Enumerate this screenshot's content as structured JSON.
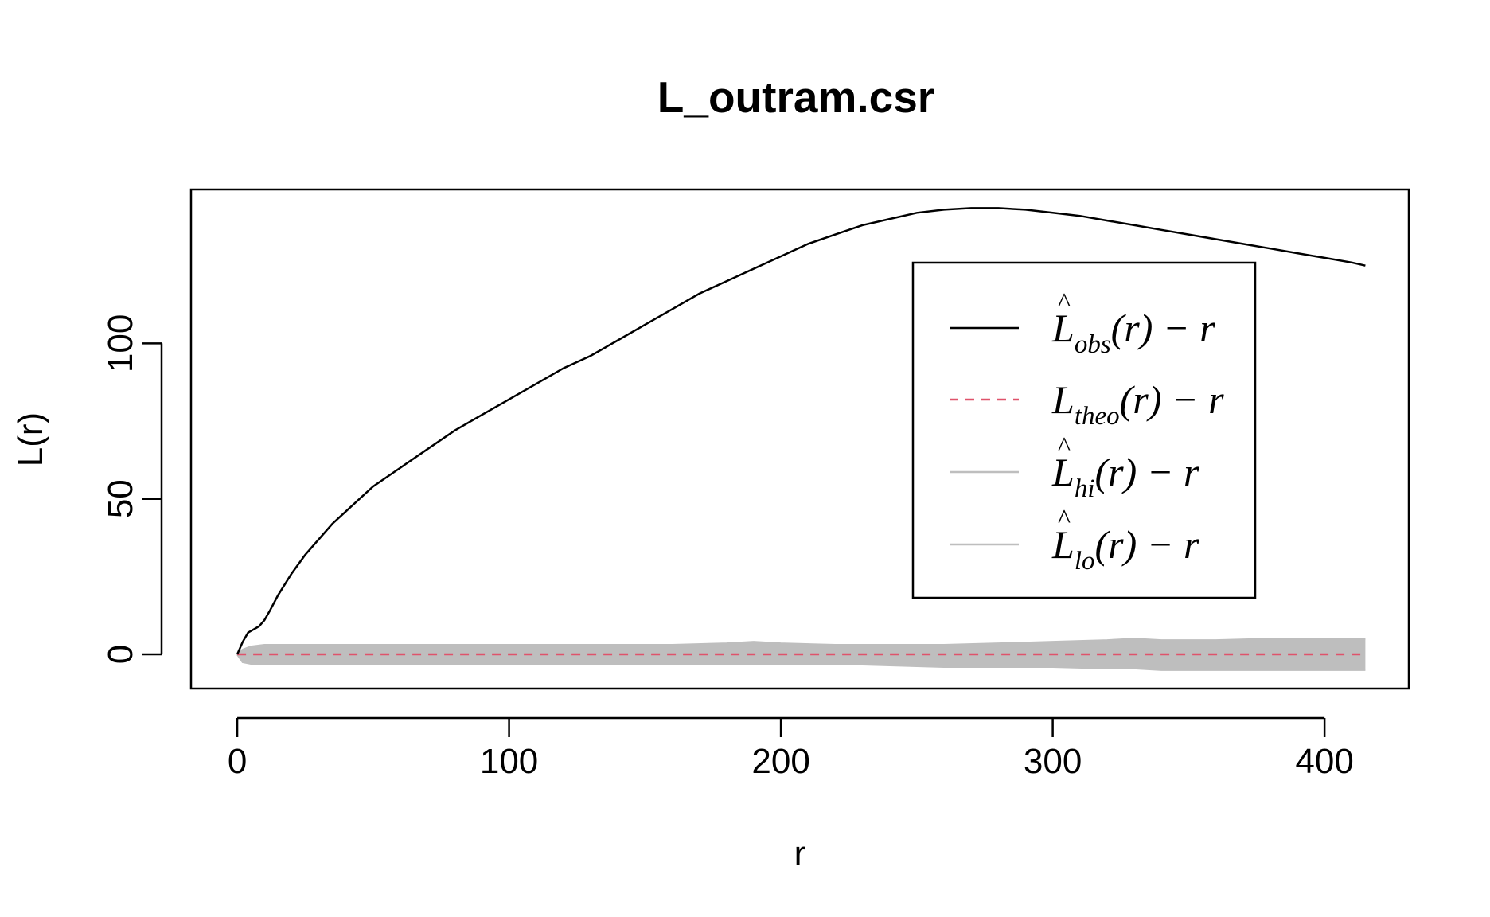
{
  "chart_data": {
    "type": "line",
    "title": "L_outram.csr",
    "xlabel": "r",
    "ylabel": "L(r)",
    "xlim": [
      -17,
      431
    ],
    "ylim": [
      -11,
      149.5
    ],
    "x_ticks": [
      0,
      100,
      200,
      300,
      400
    ],
    "y_ticks": [
      0,
      50,
      100
    ],
    "legend_position": "top-right",
    "colors": {
      "obs": "#000000",
      "theo": "#DF536B",
      "envelope": "#BEBEBE",
      "frame": "#000000"
    },
    "series": [
      {
        "key": "obs",
        "legend": {
          "main": "L",
          "hat": "^",
          "sub": "obs",
          "suffix": "(r) − r"
        },
        "style": "solid",
        "x": [
          0,
          2,
          4,
          6,
          8,
          10,
          12,
          15,
          20,
          25,
          30,
          35,
          40,
          45,
          50,
          60,
          70,
          80,
          90,
          100,
          110,
          120,
          130,
          140,
          150,
          160,
          170,
          180,
          190,
          200,
          210,
          220,
          230,
          240,
          250,
          260,
          270,
          280,
          290,
          300,
          310,
          320,
          330,
          340,
          350,
          360,
          370,
          380,
          390,
          400,
          410,
          415
        ],
        "y": [
          0,
          4,
          7,
          8,
          9,
          11,
          14,
          19,
          26,
          32,
          37,
          42,
          46,
          50,
          54,
          60,
          66,
          72,
          77,
          82,
          87,
          92,
          96,
          101,
          106,
          111,
          116,
          120,
          124,
          128,
          132,
          135,
          138,
          140,
          142,
          143,
          143.5,
          143.5,
          143,
          142,
          141,
          139.5,
          138,
          136.5,
          135,
          133.5,
          132,
          130.5,
          129,
          127.5,
          126,
          125
        ]
      },
      {
        "key": "theo",
        "legend": {
          "main": "L",
          "hat": "",
          "sub": "theo",
          "suffix": "(r) − r"
        },
        "style": "dashed",
        "x": [
          0,
          415
        ],
        "y": [
          0,
          0
        ]
      },
      {
        "key": "hi",
        "legend": {
          "main": "L",
          "hat": "^",
          "sub": "hi",
          "suffix": "(r) − r"
        },
        "style": "solid",
        "x": [
          0,
          2,
          5,
          10,
          20,
          40,
          60,
          80,
          100,
          120,
          140,
          160,
          180,
          190,
          200,
          220,
          240,
          260,
          280,
          300,
          320,
          330,
          340,
          360,
          380,
          400,
          415
        ],
        "y": [
          0,
          1.5,
          2.5,
          3,
          3,
          3,
          3,
          3,
          3,
          3,
          3,
          3,
          3.5,
          4,
          3.5,
          3,
          3,
          3,
          3.5,
          4,
          4.5,
          5,
          4.5,
          4.5,
          5,
          5,
          5
        ]
      },
      {
        "key": "lo",
        "legend": {
          "main": "L",
          "hat": "^",
          "sub": "lo",
          "suffix": "(r) − r"
        },
        "style": "solid",
        "x": [
          0,
          2,
          5,
          10,
          20,
          40,
          60,
          80,
          100,
          120,
          140,
          160,
          180,
          190,
          200,
          220,
          240,
          260,
          280,
          300,
          320,
          330,
          340,
          360,
          380,
          400,
          415
        ],
        "y": [
          0,
          -2.5,
          -3,
          -3,
          -3,
          -3,
          -3,
          -3,
          -3,
          -3,
          -3,
          -3,
          -3,
          -3,
          -3,
          -3,
          -3.5,
          -4,
          -4,
          -4,
          -4.5,
          -4.5,
          -5,
          -5,
          -5,
          -5,
          -5
        ]
      }
    ]
  }
}
